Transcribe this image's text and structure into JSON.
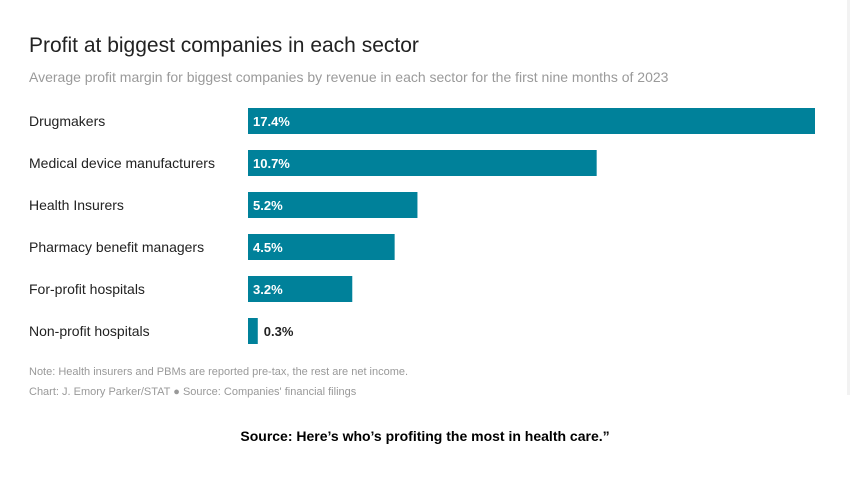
{
  "chart_data": {
    "type": "bar",
    "orientation": "horizontal",
    "title": "Profit at biggest companies in each sector",
    "subtitle": "Average profit margin for biggest companies by revenue in each sector for the first nine months of 2023",
    "categories": [
      "Drugmakers",
      "Medical device manufacturers",
      "Health Insurers",
      "Pharmacy benefit managers",
      "For-profit hospitals",
      "Non-profit hospitals"
    ],
    "values": [
      17.4,
      10.7,
      5.2,
      4.5,
      3.2,
      0.3
    ],
    "labels": [
      "17.4%",
      "10.7%",
      "5.2%",
      "4.5%",
      "3.2%",
      "0.3%"
    ],
    "unit": "%",
    "xlim": [
      0,
      17.4
    ],
    "color": "#00819a",
    "grid": false
  },
  "note": "Note: Health insurers and PBMs are reported pre-tax, the rest are net income.",
  "credit": "Chart: J. Emory Parker/STAT ● Source: Companies' financial filings",
  "source": "Source: Here’s who’s profiting the most in health care.”"
}
